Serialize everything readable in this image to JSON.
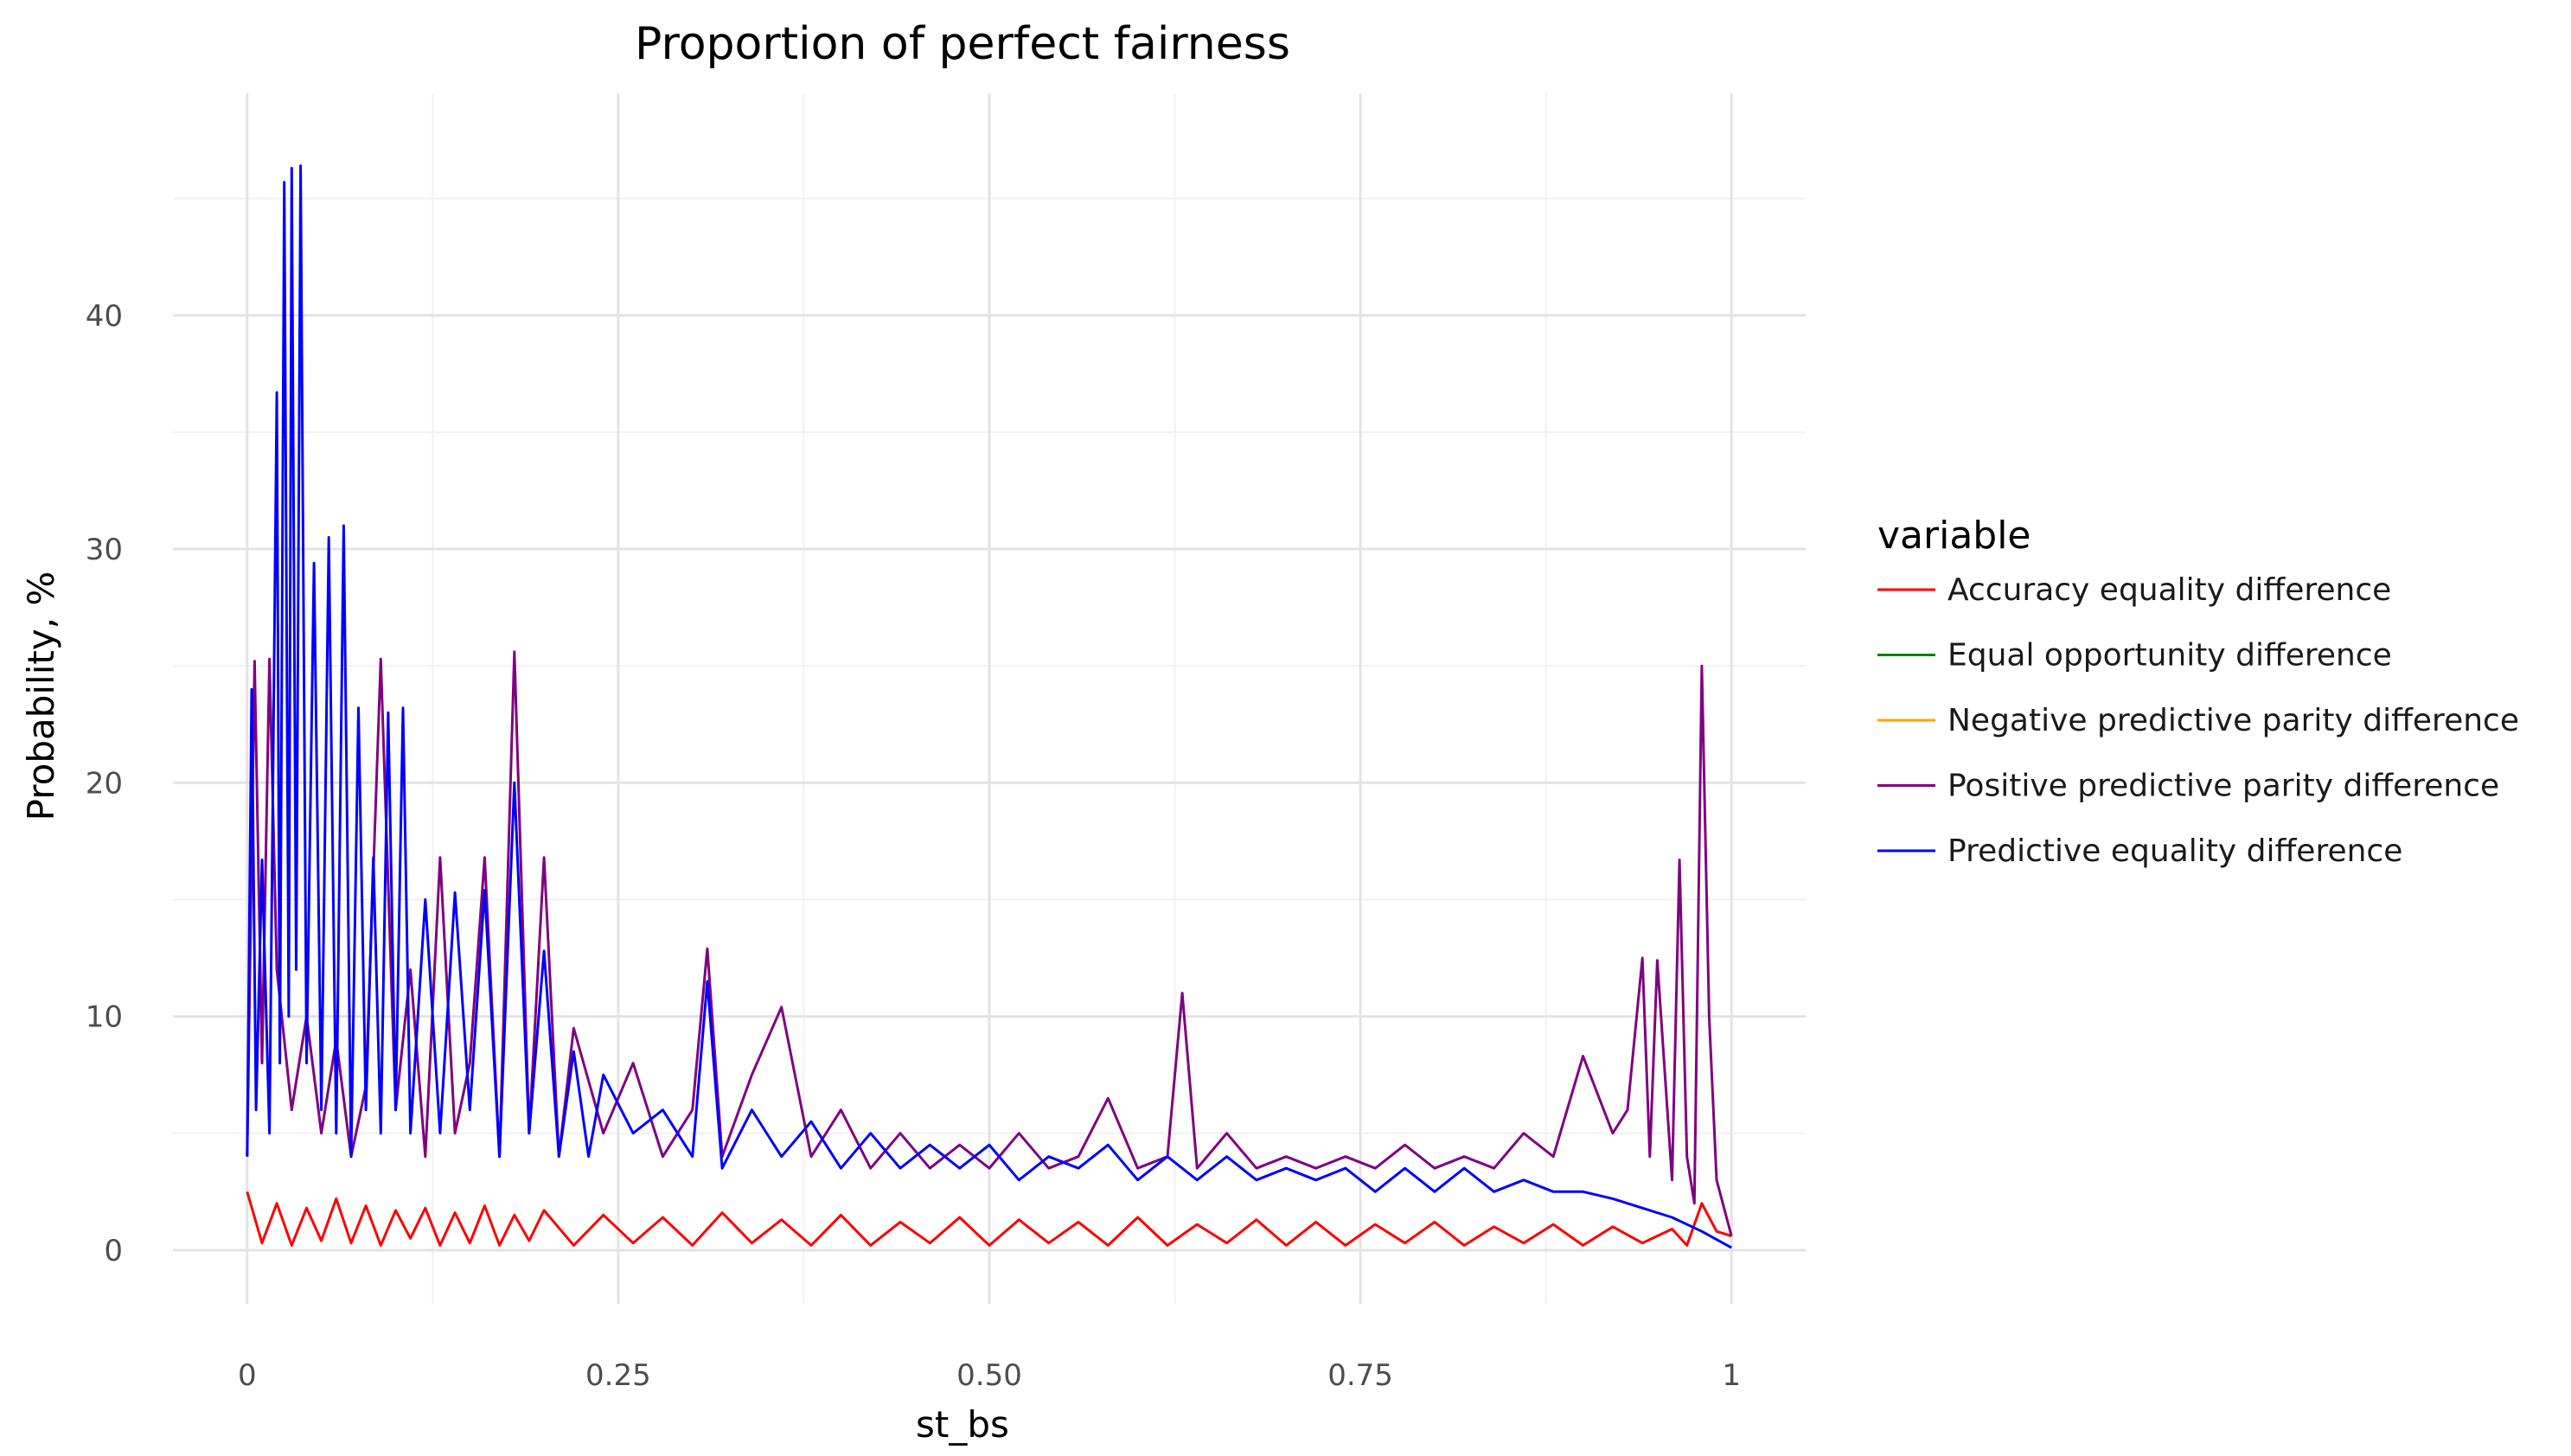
{
  "chart_data": {
    "type": "line",
    "title": "Proportion of perfect fairness",
    "xlabel": "st_bs",
    "ylabel": "Probability, %",
    "xlim": [
      -0.05,
      1.05
    ],
    "ylim": [
      -2.3,
      49.5
    ],
    "x_ticks": [
      0,
      0.25,
      0.5,
      0.75,
      1
    ],
    "x_tick_labels": [
      "0",
      "0.25",
      "0.50",
      "0.75",
      "1"
    ],
    "y_ticks": [
      0,
      10,
      20,
      30,
      40
    ],
    "y_tick_labels": [
      "0",
      "10",
      "20",
      "30",
      "40"
    ],
    "grid": true,
    "legend_position": "right",
    "legend": {
      "title": "variable",
      "entries": [
        {
          "name": "Accuracy equality difference",
          "color": "#ff0000"
        },
        {
          "name": "Equal opportunity difference",
          "color": "#008000"
        },
        {
          "name": "Negative predictive parity difference",
          "color": "#ffa500"
        },
        {
          "name": "Positive predictive parity difference",
          "color": "#800080"
        },
        {
          "name": "Predictive equality difference",
          "color": "#0000ff"
        }
      ]
    },
    "series": [
      {
        "name": "Accuracy equality difference",
        "color": "#ff0000",
        "x": [
          0,
          0.01,
          0.02,
          0.03,
          0.04,
          0.05,
          0.06,
          0.07,
          0.08,
          0.09,
          0.1,
          0.11,
          0.12,
          0.13,
          0.14,
          0.15,
          0.16,
          0.17,
          0.18,
          0.19,
          0.2,
          0.22,
          0.24,
          0.26,
          0.28,
          0.3,
          0.32,
          0.34,
          0.36,
          0.38,
          0.4,
          0.42,
          0.44,
          0.46,
          0.48,
          0.5,
          0.52,
          0.54,
          0.56,
          0.58,
          0.6,
          0.62,
          0.64,
          0.66,
          0.68,
          0.7,
          0.72,
          0.74,
          0.76,
          0.78,
          0.8,
          0.82,
          0.84,
          0.86,
          0.88,
          0.9,
          0.92,
          0.94,
          0.96,
          0.97,
          0.98,
          0.99,
          1.0
        ],
        "values": [
          2.5,
          0.3,
          2.0,
          0.2,
          1.8,
          0.4,
          2.2,
          0.3,
          1.9,
          0.2,
          1.7,
          0.5,
          1.8,
          0.2,
          1.6,
          0.3,
          1.9,
          0.2,
          1.5,
          0.4,
          1.7,
          0.2,
          1.5,
          0.3,
          1.4,
          0.2,
          1.6,
          0.3,
          1.3,
          0.2,
          1.5,
          0.2,
          1.2,
          0.3,
          1.4,
          0.2,
          1.3,
          0.3,
          1.2,
          0.2,
          1.4,
          0.2,
          1.1,
          0.3,
          1.3,
          0.2,
          1.2,
          0.2,
          1.1,
          0.3,
          1.2,
          0.2,
          1.0,
          0.3,
          1.1,
          0.2,
          1.0,
          0.3,
          0.9,
          0.2,
          2.0,
          0.8,
          0.6
        ]
      },
      {
        "name": "Positive predictive parity difference",
        "color": "#800080",
        "x": [
          0,
          0.005,
          0.01,
          0.015,
          0.02,
          0.03,
          0.04,
          0.05,
          0.06,
          0.07,
          0.08,
          0.09,
          0.1,
          0.11,
          0.12,
          0.13,
          0.14,
          0.15,
          0.16,
          0.17,
          0.18,
          0.19,
          0.2,
          0.21,
          0.22,
          0.24,
          0.26,
          0.28,
          0.3,
          0.31,
          0.32,
          0.34,
          0.36,
          0.38,
          0.4,
          0.42,
          0.44,
          0.46,
          0.48,
          0.5,
          0.52,
          0.54,
          0.56,
          0.58,
          0.6,
          0.62,
          0.63,
          0.64,
          0.66,
          0.68,
          0.7,
          0.72,
          0.74,
          0.76,
          0.78,
          0.8,
          0.82,
          0.84,
          0.86,
          0.88,
          0.9,
          0.92,
          0.93,
          0.94,
          0.945,
          0.95,
          0.96,
          0.965,
          0.97,
          0.975,
          0.98,
          0.985,
          0.99,
          1.0
        ],
        "values": [
          4.0,
          25.2,
          8.0,
          25.3,
          12.0,
          6.0,
          10.0,
          5.0,
          9.0,
          4.0,
          7.0,
          25.3,
          6.0,
          12.0,
          4.0,
          16.8,
          5.0,
          8.0,
          16.8,
          4.0,
          25.6,
          5.0,
          16.8,
          4.0,
          9.5,
          5.0,
          8.0,
          4.0,
          6.0,
          12.9,
          4.0,
          7.5,
          10.4,
          4.0,
          6.0,
          3.5,
          5.0,
          3.5,
          4.5,
          3.5,
          5.0,
          3.5,
          4.0,
          6.5,
          3.5,
          4.0,
          11.0,
          3.5,
          5.0,
          3.5,
          4.0,
          3.5,
          4.0,
          3.5,
          4.5,
          3.5,
          4.0,
          3.5,
          5.0,
          4.0,
          8.3,
          5.0,
          6.0,
          12.5,
          4.0,
          12.4,
          3.0,
          16.7,
          4.0,
          2.0,
          25.0,
          10.0,
          3.0,
          0.6
        ]
      },
      {
        "name": "Predictive equality difference",
        "color": "#0000ff",
        "x": [
          0,
          0.003,
          0.006,
          0.01,
          0.015,
          0.02,
          0.022,
          0.025,
          0.028,
          0.03,
          0.033,
          0.036,
          0.04,
          0.045,
          0.05,
          0.055,
          0.06,
          0.065,
          0.07,
          0.075,
          0.08,
          0.085,
          0.09,
          0.095,
          0.1,
          0.105,
          0.11,
          0.12,
          0.13,
          0.14,
          0.15,
          0.16,
          0.17,
          0.18,
          0.19,
          0.2,
          0.21,
          0.22,
          0.23,
          0.24,
          0.26,
          0.28,
          0.3,
          0.31,
          0.32,
          0.34,
          0.36,
          0.38,
          0.4,
          0.42,
          0.44,
          0.46,
          0.48,
          0.5,
          0.52,
          0.54,
          0.56,
          0.58,
          0.6,
          0.62,
          0.64,
          0.66,
          0.68,
          0.7,
          0.72,
          0.74,
          0.76,
          0.78,
          0.8,
          0.82,
          0.84,
          0.86,
          0.88,
          0.9,
          0.92,
          0.94,
          0.96,
          0.98,
          1.0
        ],
        "values": [
          4.0,
          24.0,
          6.0,
          16.7,
          5.0,
          36.7,
          8.0,
          45.7,
          10.0,
          46.3,
          12.0,
          46.4,
          8.0,
          29.4,
          6.0,
          30.5,
          5.0,
          31.0,
          4.0,
          23.2,
          6.0,
          16.8,
          5.0,
          23.0,
          6.0,
          23.2,
          5.0,
          15.0,
          5.0,
          15.3,
          6.0,
          15.4,
          4.0,
          20.0,
          5.0,
          12.8,
          4.0,
          8.5,
          4.0,
          7.5,
          5.0,
          6.0,
          4.0,
          11.5,
          3.5,
          6.0,
          4.0,
          5.5,
          3.5,
          5.0,
          3.5,
          4.5,
          3.5,
          4.5,
          3.0,
          4.0,
          3.5,
          4.5,
          3.0,
          4.0,
          3.0,
          4.0,
          3.0,
          3.5,
          3.0,
          3.5,
          2.5,
          3.5,
          2.5,
          3.5,
          2.5,
          3.0,
          2.5,
          2.5,
          2.2,
          1.8,
          1.4,
          0.8,
          0.1
        ]
      }
    ]
  }
}
